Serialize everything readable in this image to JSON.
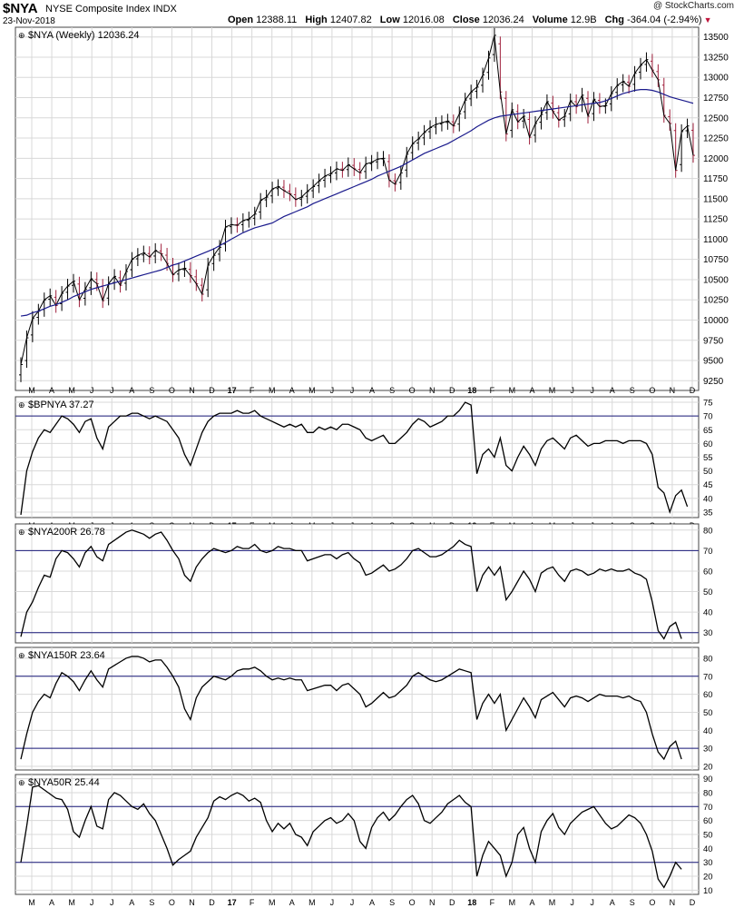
{
  "header": {
    "symbol": "$NYA",
    "name": "NYSE Composite Index INDX",
    "date": "23-Nov-2018",
    "copyright": "@ StockCharts.com",
    "ohlc": [
      {
        "label": "Open",
        "value": "12388.11"
      },
      {
        "label": "High",
        "value": "12407.82"
      },
      {
        "label": "Low",
        "value": "12016.08"
      },
      {
        "label": "Close",
        "value": "12036.24"
      },
      {
        "label": "Volume",
        "value": "12.9B"
      },
      {
        "label": "Chg",
        "value": "-364.04 (-2.94%)"
      }
    ]
  },
  "colors": {
    "up": "#000000",
    "down": "#a0203c",
    "ma": "#1a1a8c",
    "ref_line": "#1a1a7a",
    "grid": "#d8d8d8"
  },
  "chart_data": [
    {
      "type": "ohlc",
      "panel": "price",
      "title": "$NYA (Weekly) 12036.24",
      "yticks": [
        9250,
        9500,
        9750,
        10000,
        10250,
        10500,
        10750,
        11000,
        11250,
        11500,
        11750,
        12000,
        12250,
        12500,
        12750,
        13000,
        13250,
        13500
      ],
      "ylim": [
        9130,
        13620
      ],
      "series": [
        {
          "name": "Close (weekly)",
          "values": [
            9450,
            9780,
            10020,
            10110,
            10250,
            10300,
            10180,
            10330,
            10420,
            10480,
            10250,
            10380,
            10510,
            10450,
            10240,
            10450,
            10540,
            10430,
            10600,
            10750,
            10800,
            10830,
            10780,
            10860,
            10820,
            10700,
            10560,
            10620,
            10640,
            10550,
            10450,
            10320,
            10680,
            10800,
            10900,
            11150,
            11180,
            11170,
            11230,
            11250,
            11310,
            11480,
            11520,
            11620,
            11650,
            11600,
            11560,
            11490,
            11520,
            11590,
            11650,
            11720,
            11780,
            11810,
            11870,
            11850,
            11920,
            11870,
            11820,
            11930,
            11950,
            11990,
            12000,
            11730,
            11680,
            11820,
            12050,
            12180,
            12240,
            12320,
            12380,
            12420,
            12440,
            12460,
            12400,
            12550,
            12720,
            12820,
            12880,
            13030,
            13240,
            13520,
            12820,
            12300,
            12600,
            12450,
            12520,
            12260,
            12430,
            12540,
            12700,
            12580,
            12470,
            12520,
            12710,
            12640,
            12780,
            12520,
            12730,
            12640,
            12650,
            12800,
            12900,
            12950,
            12890,
            13050,
            13150,
            13220,
            13090,
            12970,
            12530,
            12430,
            11850,
            12330,
            12400,
            12036
          ]
        },
        {
          "name": "MA (40-week)",
          "values": [
            10050,
            10060,
            10090,
            10110,
            10140,
            10170,
            10190,
            10220,
            10250,
            10290,
            10320,
            10350,
            10380,
            10400,
            10420,
            10440,
            10460,
            10480,
            10500,
            10520,
            10540,
            10560,
            10580,
            10600,
            10620,
            10650,
            10680,
            10700,
            10730,
            10760,
            10790,
            10820,
            10850,
            10880,
            10920,
            10960,
            11000,
            11040,
            11080,
            11110,
            11140,
            11160,
            11180,
            11200,
            11240,
            11280,
            11310,
            11340,
            11370,
            11400,
            11440,
            11470,
            11500,
            11530,
            11560,
            11590,
            11620,
            11650,
            11680,
            11710,
            11740,
            11780,
            11810,
            11840,
            11870,
            11900,
            11940,
            11980,
            12020,
            12060,
            12090,
            12120,
            12150,
            12180,
            12220,
            12260,
            12300,
            12340,
            12390,
            12430,
            12470,
            12500,
            12520,
            12530,
            12540,
            12550,
            12560,
            12570,
            12580,
            12590,
            12600,
            12610,
            12620,
            12630,
            12640,
            12650,
            12660,
            12670,
            12680,
            12690,
            12710,
            12740,
            12770,
            12800,
            12820,
            12840,
            12850,
            12850,
            12840,
            12820,
            12790,
            12760,
            12740,
            12720,
            12700,
            12680
          ]
        }
      ]
    },
    {
      "type": "line",
      "panel": "indicator",
      "title": "$BPNYA 37.27",
      "yticks": [
        35,
        40,
        45,
        50,
        55,
        60,
        65,
        70,
        75
      ],
      "ylim": [
        33,
        77
      ],
      "ref_lines": [
        70
      ],
      "values": [
        34,
        50,
        57,
        62,
        65,
        64,
        67,
        70,
        69,
        67,
        64,
        68,
        69,
        62,
        58,
        66,
        68,
        70,
        70,
        71,
        71,
        70,
        69,
        70,
        69,
        68,
        65,
        62,
        56,
        52,
        58,
        64,
        68,
        70,
        71,
        71,
        71,
        72,
        71,
        71,
        72,
        70,
        69,
        68,
        67,
        66,
        67,
        66,
        67,
        64,
        64,
        66,
        65,
        66,
        65,
        67,
        67,
        66,
        65,
        62,
        61,
        62,
        63,
        60,
        60,
        62,
        64,
        67,
        69,
        68,
        66,
        67,
        68,
        70,
        70,
        72,
        75,
        74,
        49,
        56,
        58,
        55,
        62,
        52,
        50,
        55,
        59,
        56,
        52,
        58,
        61,
        62,
        60,
        58,
        62,
        63,
        61,
        59,
        60,
        60,
        61,
        61,
        61,
        60,
        61,
        61,
        61,
        60,
        56,
        44,
        42,
        35,
        41,
        43,
        37
      ]
    },
    {
      "type": "line",
      "panel": "indicator",
      "title": "$NYA200R 26.78",
      "yticks": [
        30,
        40,
        50,
        60,
        70,
        80
      ],
      "ylim": [
        25,
        83
      ],
      "ref_lines": [
        70,
        30
      ],
      "values": [
        28,
        40,
        45,
        52,
        58,
        57,
        66,
        70,
        69,
        66,
        62,
        69,
        72,
        67,
        65,
        73,
        75,
        77,
        79,
        80,
        79,
        78,
        76,
        78,
        79,
        75,
        70,
        66,
        58,
        55,
        62,
        66,
        69,
        71,
        70,
        69,
        70,
        72,
        71,
        71,
        73,
        70,
        69,
        70,
        72,
        71,
        71,
        70,
        70,
        65,
        66,
        67,
        68,
        68,
        66,
        68,
        69,
        66,
        64,
        58,
        59,
        61,
        63,
        60,
        61,
        63,
        66,
        70,
        71,
        69,
        67,
        67,
        68,
        70,
        72,
        75,
        73,
        72,
        50,
        58,
        62,
        58,
        62,
        46,
        50,
        55,
        60,
        56,
        50,
        59,
        61,
        62,
        58,
        55,
        60,
        61,
        60,
        58,
        59,
        61,
        60,
        61,
        60,
        60,
        61,
        59,
        58,
        56,
        45,
        31,
        27,
        33,
        35,
        27
      ]
    },
    {
      "type": "line",
      "panel": "indicator",
      "title": "$NYA150R 23.64",
      "yticks": [
        20,
        30,
        40,
        50,
        60,
        70,
        80
      ],
      "ylim": [
        18,
        86
      ],
      "ref_lines": [
        70,
        30
      ],
      "values": [
        24,
        38,
        50,
        56,
        60,
        58,
        66,
        72,
        70,
        67,
        62,
        68,
        73,
        68,
        64,
        74,
        76,
        78,
        80,
        81,
        81,
        80,
        78,
        79,
        79,
        75,
        70,
        64,
        52,
        46,
        58,
        64,
        67,
        70,
        69,
        68,
        70,
        73,
        74,
        74,
        75,
        73,
        70,
        68,
        69,
        68,
        69,
        68,
        68,
        62,
        63,
        64,
        65,
        65,
        62,
        65,
        66,
        63,
        60,
        53,
        55,
        58,
        61,
        58,
        59,
        62,
        65,
        70,
        72,
        70,
        68,
        67,
        68,
        70,
        72,
        74,
        73,
        72,
        46,
        55,
        60,
        55,
        60,
        40,
        46,
        52,
        58,
        53,
        47,
        57,
        59,
        61,
        57,
        53,
        58,
        59,
        58,
        56,
        58,
        60,
        59,
        59,
        59,
        58,
        59,
        57,
        56,
        50,
        38,
        28,
        24,
        31,
        34,
        24
      ]
    },
    {
      "type": "line",
      "panel": "indicator",
      "title": "$NYA50R 25.44",
      "yticks": [
        10,
        20,
        30,
        40,
        50,
        60,
        70,
        80,
        90
      ],
      "ylim": [
        7,
        93
      ],
      "ref_lines": [
        70,
        30
      ],
      "values": [
        30,
        56,
        84,
        85,
        82,
        79,
        76,
        75,
        68,
        52,
        48,
        60,
        70,
        56,
        54,
        75,
        80,
        78,
        74,
        70,
        68,
        72,
        65,
        60,
        50,
        40,
        28,
        32,
        35,
        38,
        48,
        55,
        62,
        74,
        77,
        75,
        78,
        80,
        78,
        74,
        76,
        73,
        60,
        52,
        58,
        54,
        58,
        50,
        48,
        42,
        52,
        56,
        60,
        62,
        58,
        60,
        65,
        60,
        45,
        40,
        55,
        62,
        66,
        60,
        64,
        70,
        75,
        78,
        72,
        60,
        58,
        62,
        66,
        72,
        75,
        78,
        73,
        70,
        20,
        35,
        45,
        40,
        35,
        20,
        30,
        50,
        55,
        40,
        30,
        52,
        60,
        65,
        55,
        50,
        58,
        62,
        66,
        68,
        70,
        64,
        58,
        54,
        56,
        60,
        64,
        62,
        58,
        50,
        38,
        18,
        12,
        20,
        30,
        25
      ]
    }
  ],
  "x_axis_months": [
    "M",
    "A",
    "M",
    "J",
    "J",
    "A",
    "S",
    "O",
    "N",
    "D",
    "17",
    "F",
    "M",
    "A",
    "M",
    "J",
    "J",
    "A",
    "S",
    "O",
    "N",
    "D",
    "18",
    "F",
    "M",
    "A",
    "M",
    "J",
    "J",
    "A",
    "S",
    "O",
    "N",
    "D"
  ]
}
